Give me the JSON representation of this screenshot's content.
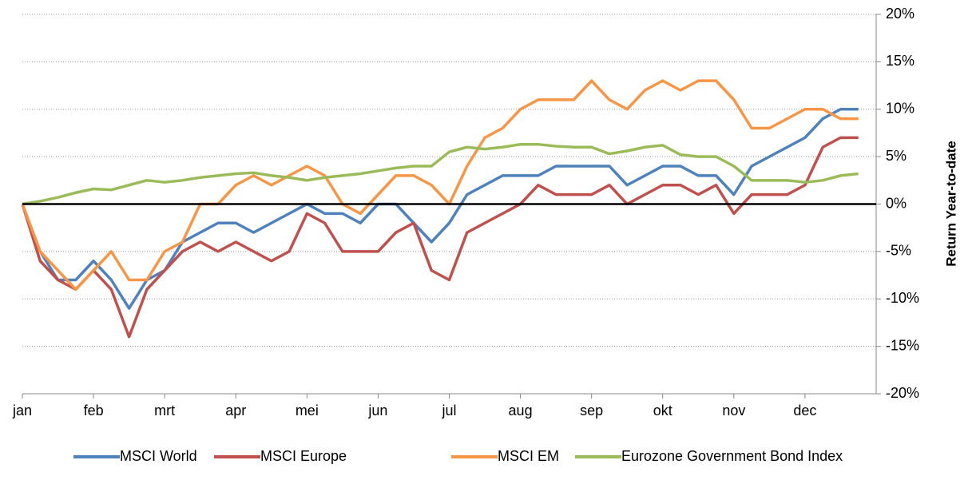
{
  "chart_data": {
    "type": "line",
    "axis_label": "Return Year-to-date",
    "categories": [
      "jan",
      null,
      null,
      null,
      "feb",
      null,
      null,
      null,
      "mrt",
      null,
      null,
      null,
      "apr",
      null,
      null,
      null,
      "mei",
      null,
      null,
      null,
      "jun",
      null,
      null,
      null,
      "jul",
      null,
      null,
      null,
      "aug",
      null,
      null,
      null,
      "sep",
      null,
      null,
      null,
      "okt",
      null,
      null,
      null,
      "nov",
      null,
      null,
      null,
      "dec",
      null,
      null,
      null
    ],
    "series": [
      {
        "name": "MSCI World",
        "color": "#4f81bd",
        "values": [
          0,
          -5,
          -8,
          -8,
          -6,
          -8,
          -11,
          -8,
          -7,
          -4,
          -3,
          -2,
          -2,
          -3,
          -2,
          -1,
          0,
          -1,
          -1,
          -2,
          0,
          0,
          -2,
          -4,
          -2,
          1,
          2,
          3,
          3,
          3,
          4,
          4,
          4,
          4,
          2,
          3,
          4,
          4,
          3,
          3,
          1,
          4,
          5,
          6,
          7,
          9,
          10,
          10
        ]
      },
      {
        "name": "MSCI Europe",
        "color": "#c0504d",
        "values": [
          0,
          -6,
          -8,
          -9,
          -7,
          -9,
          -14,
          -9,
          -7,
          -5,
          -4,
          -5,
          -4,
          -5,
          -6,
          -5,
          -1,
          -2,
          -5,
          -5,
          -5,
          -3,
          -2,
          -7,
          -8,
          -3,
          -2,
          -1,
          0,
          2,
          1,
          1,
          1,
          2,
          0,
          1,
          2,
          2,
          1,
          2,
          -1,
          1,
          1,
          1,
          2,
          6,
          7,
          7
        ]
      },
      {
        "name": "MSCI EM",
        "color": "#f79646",
        "values": [
          0,
          -5,
          -7,
          -9,
          -7,
          -5,
          -8,
          -8,
          -5,
          -4,
          0,
          0,
          2,
          3,
          2,
          3,
          4,
          3,
          0,
          -1,
          1,
          3,
          3,
          2,
          0,
          4,
          7,
          8,
          10,
          11,
          11,
          11,
          13,
          11,
          10,
          12,
          13,
          12,
          13,
          13,
          11,
          8,
          8,
          9,
          10,
          10,
          9,
          9
        ]
      },
      {
        "name": "Eurozone Government Bond Index",
        "color": "#9bbb59",
        "values": [
          0,
          0.3,
          0.7,
          1.2,
          1.6,
          1.5,
          2,
          2.5,
          2.3,
          2.5,
          2.8,
          3,
          3.2,
          3.3,
          3,
          2.8,
          2.5,
          2.8,
          3,
          3.2,
          3.5,
          3.8,
          4,
          4,
          5.5,
          6,
          5.8,
          6,
          6.3,
          6.3,
          6.1,
          6,
          6,
          5.3,
          5.6,
          6,
          6.2,
          5.2,
          5,
          5,
          4,
          2.5,
          2.5,
          2.5,
          2.3,
          2.5,
          3,
          3.2
        ]
      }
    ],
    "ylim": [
      -20,
      20
    ],
    "yticks": [
      {
        "value": -20,
        "label": "-20%"
      },
      {
        "value": -15,
        "label": "-15%"
      },
      {
        "value": -10,
        "label": "-10%"
      },
      {
        "value": -5,
        "label": "-5%"
      },
      {
        "value": 0,
        "label": "0%"
      },
      {
        "value": 5,
        "label": "5%"
      },
      {
        "value": 10,
        "label": "10%"
      },
      {
        "value": 15,
        "label": "15%"
      },
      {
        "value": 20,
        "label": "20%"
      }
    ],
    "grid": true,
    "legend": "bottom"
  }
}
